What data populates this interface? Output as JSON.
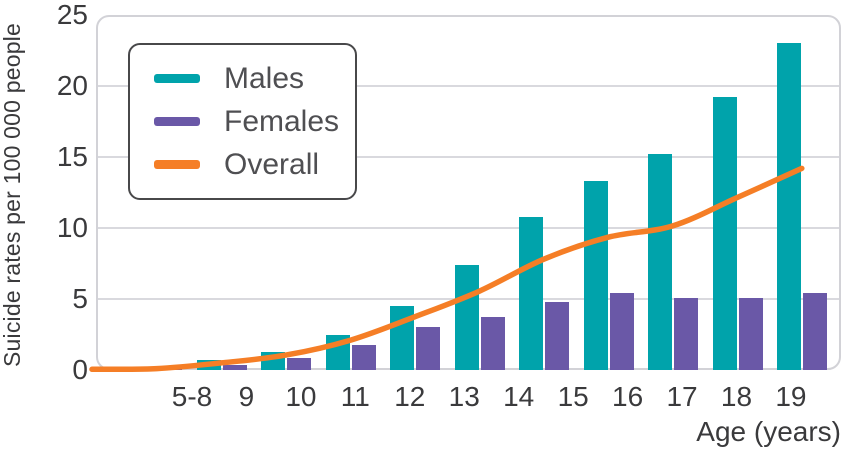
{
  "chart": {
    "y_axis_title": "Suicide rates per 100 000 people",
    "x_axis_title": "Age (years)",
    "y_tick_labels": [
      "0",
      "5",
      "10",
      "15",
      "20",
      "25"
    ],
    "grid_color": "#d9d9de",
    "axis_text_color": "#3a3a3c",
    "legend_text_color": "#4f4f52"
  },
  "chart_data": {
    "type": "bar+line",
    "title": "",
    "xlabel": "Age (years)",
    "ylabel": "Suicide rates per 100 000 people",
    "categories": [
      "5-8",
      "9",
      "10",
      "11",
      "12",
      "13",
      "14",
      "15",
      "16",
      "17",
      "18",
      "19"
    ],
    "series": [
      {
        "name": "Males",
        "type": "bar",
        "color": "#00a3ab",
        "values": [
          0,
          0.05,
          0.7,
          1.3,
          2.5,
          4.5,
          7.4,
          10.8,
          13.3,
          15.2,
          19.2,
          23.0
        ]
      },
      {
        "name": "Females",
        "type": "bar",
        "color": "#6a58a7",
        "values": [
          0,
          0.15,
          0.35,
          0.85,
          1.75,
          3.0,
          3.75,
          4.8,
          5.4,
          5.1,
          5.1,
          5.4
        ]
      },
      {
        "name": "Overall",
        "type": "line",
        "color": "#f57e26",
        "values": [
          0.05,
          0.1,
          0.5,
          1.05,
          2.1,
          3.75,
          5.55,
          7.8,
          9.35,
          10.15,
          12.15,
          14.2
        ]
      }
    ],
    "ylim": [
      0,
      25
    ],
    "y_ticks": [
      0,
      5,
      10,
      15,
      20,
      25
    ],
    "grid": true,
    "legend_position": "upper-left"
  }
}
